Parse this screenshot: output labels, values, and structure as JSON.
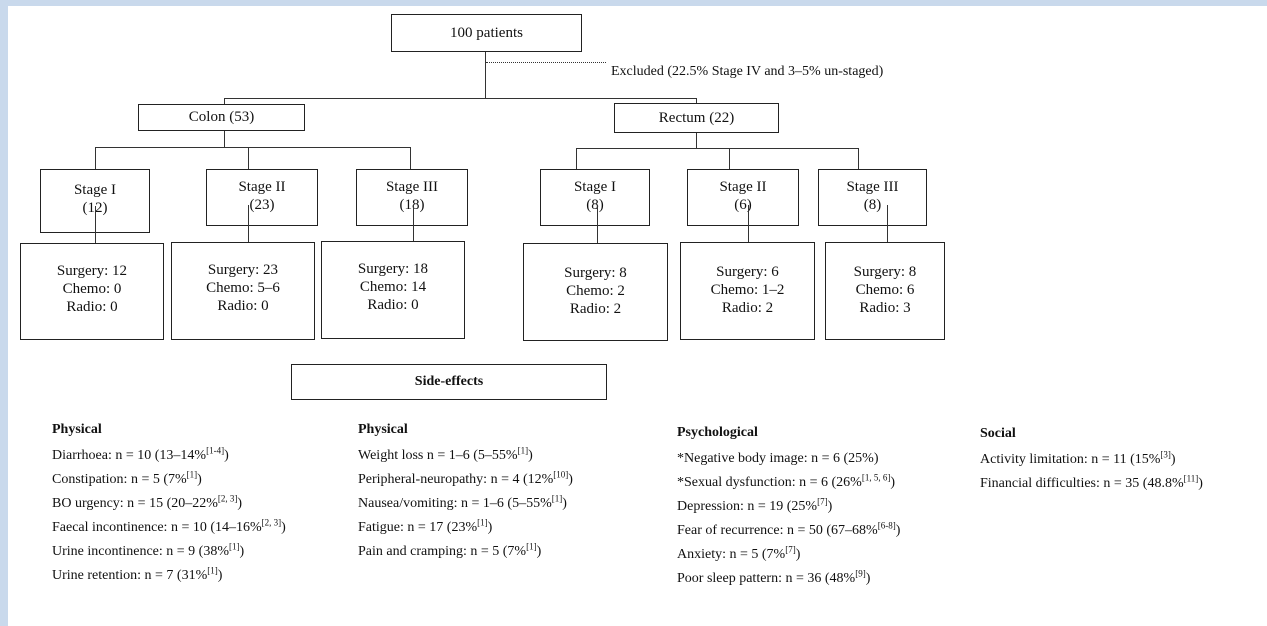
{
  "top": {
    "label": "100 patients",
    "excluded": "Excluded (22.5% Stage IV and 3–5% un-staged)"
  },
  "colon": {
    "label": "Colon (53)",
    "stages": [
      {
        "stage": "Stage I",
        "count": "(12)",
        "surgery": "Surgery: 12",
        "chemo": "Chemo: 0",
        "radio": "Radio: 0"
      },
      {
        "stage": "Stage II",
        "count": "(23)",
        "surgery": "Surgery: 23",
        "chemo": "Chemo: 5–6",
        "radio": "Radio: 0"
      },
      {
        "stage": "Stage III",
        "count": "(18)",
        "surgery": "Surgery: 18",
        "chemo": "Chemo: 14",
        "radio": "Radio: 0"
      }
    ]
  },
  "rectum": {
    "label": "Rectum (22)",
    "stages": [
      {
        "stage": "Stage I",
        "count": "(8)",
        "surgery": "Surgery: 8",
        "chemo": "Chemo: 2",
        "radio": "Radio: 2"
      },
      {
        "stage": "Stage II",
        "count": "(6)",
        "surgery": "Surgery: 6",
        "chemo": "Chemo: 1–2",
        "radio": "Radio: 2"
      },
      {
        "stage": "Stage III",
        "count": "(8)",
        "surgery": "Surgery: 8",
        "chemo": "Chemo: 6",
        "radio": "Radio: 3"
      }
    ]
  },
  "side_effects": {
    "title": "Side-effects",
    "columns": [
      {
        "heading": "Physical",
        "items": [
          {
            "text": "Diarrhoea: n = 10 (13–14%",
            "ref": "[1-4]",
            "tail": ")"
          },
          {
            "text": "Constipation: n = 5 (7%",
            "ref": "[1]",
            "tail": ")"
          },
          {
            "text": "BO urgency: n = 15 (20–22%",
            "ref": "[2, 3]",
            "tail": ")"
          },
          {
            "text": "Faecal incontinence: n = 10 (14–16%",
            "ref": "[2, 3]",
            "tail": ")"
          },
          {
            "text": "Urine incontinence: n = 9 (38%",
            "ref": "[1]",
            "tail": ")"
          },
          {
            "text": "Urine retention: n = 7 (31%",
            "ref": "[1]",
            "tail": ")"
          }
        ]
      },
      {
        "heading": "Physical",
        "items": [
          {
            "text": "Weight loss n = 1–6 (5–55%",
            "ref": "[1]",
            "tail": ")"
          },
          {
            "text": "Peripheral-neuropathy: n = 4 (12%",
            "ref": "[10]",
            "tail": ")"
          },
          {
            "text": "Nausea/vomiting: n = 1–6 (5–55%",
            "ref": "[1]",
            "tail": ")"
          },
          {
            "text": "Fatigue: n = 17 (23%",
            "ref": "[1]",
            "tail": ")"
          },
          {
            "text": "Pain and cramping: n = 5 (7%",
            "ref": "[1]",
            "tail": ")"
          }
        ]
      },
      {
        "heading": "Psychological",
        "items": [
          {
            "text": "*Negative body image: n = 6 (25%)",
            "ref": "",
            "tail": ""
          },
          {
            "text": "*Sexual dysfunction: n = 6 (26%",
            "ref": "[1, 5, 6]",
            "tail": ")"
          },
          {
            "text": "Depression: n = 19 (25%",
            "ref": "[7]",
            "tail": ")"
          },
          {
            "text": "Fear of recurrence: n = 50 (67–68%",
            "ref": "[6-8]",
            "tail": ")"
          },
          {
            "text": "Anxiety: n = 5 (7%",
            "ref": "[7]",
            "tail": ")"
          },
          {
            "text": "Poor sleep pattern: n = 36 (48%",
            "ref": "[9]",
            "tail": ")"
          }
        ]
      },
      {
        "heading": "Social",
        "items": [
          {
            "text": "Activity limitation: n = 11 (15%",
            "ref": "[3]",
            "tail": ")"
          },
          {
            "text": "Financial difficulties: n = 35 (48.8%",
            "ref": "[11]",
            "tail": ")"
          }
        ]
      }
    ]
  }
}
